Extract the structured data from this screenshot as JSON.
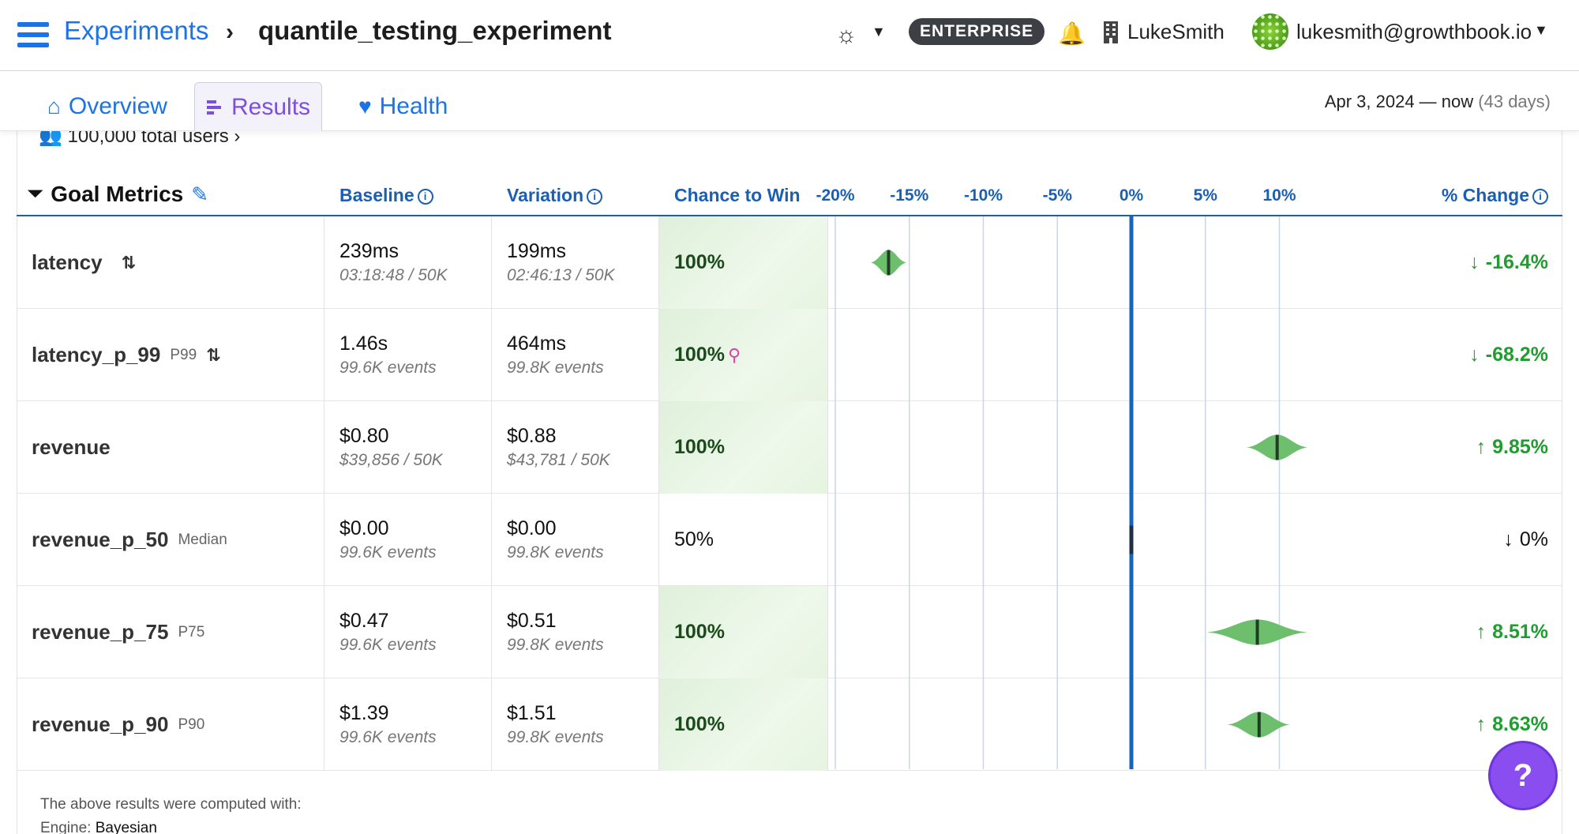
{
  "nav": {
    "breadcrumb_root": "Experiments",
    "breadcrumb_sep": "›",
    "breadcrumb_current": "quantile_testing_experiment",
    "plan_badge": "ENTERPRISE",
    "org_name": "LukeSmith",
    "user_email": "lukesmith@growthbook.io"
  },
  "tabs": [
    {
      "label": "Overview",
      "icon": "home-icon",
      "active": false
    },
    {
      "label": "Results",
      "icon": "results-icon",
      "active": true
    },
    {
      "label": "Health",
      "icon": "heart-pulse-icon",
      "active": false
    }
  ],
  "date_range": {
    "text": "Apr 3, 2024 — now",
    "duration": "(43 days)"
  },
  "summary": {
    "total_users": "100,000 total users"
  },
  "table": {
    "title": "Goal Metrics",
    "columns": {
      "baseline": "Baseline",
      "variation": "Variation",
      "chance_to_win": "Chance to Win",
      "pct_change": "% Change"
    },
    "axis_ticks": [
      "-20%",
      "-15%",
      "-10%",
      "-5%",
      "0%",
      "5%",
      "10%"
    ],
    "rows": [
      {
        "metric": "latency",
        "tag": "",
        "inverse_icon": true,
        "baseline": "239ms",
        "baseline_sub": "03:18:48 / 50K",
        "variation": "199ms",
        "variation_sub": "02:46:13 / 50K",
        "chance": "100%",
        "win": true,
        "flag": false,
        "change": "-16.4%",
        "direction": "down",
        "good": true
      },
      {
        "metric": "latency_p_99",
        "tag": "P99",
        "inverse_icon": true,
        "baseline": "1.46s",
        "baseline_sub": "99.6K events",
        "variation": "464ms",
        "variation_sub": "99.8K events",
        "chance": "100%",
        "win": true,
        "flag": true,
        "change": "-68.2%",
        "direction": "down",
        "good": true
      },
      {
        "metric": "revenue",
        "tag": "",
        "inverse_icon": false,
        "baseline": "$0.80",
        "baseline_sub": "$39,856 / 50K",
        "variation": "$0.88",
        "variation_sub": "$43,781 / 50K",
        "chance": "100%",
        "win": true,
        "flag": false,
        "change": "9.85%",
        "direction": "up",
        "good": true
      },
      {
        "metric": "revenue_p_50",
        "tag": "Median",
        "inverse_icon": false,
        "baseline": "$0.00",
        "baseline_sub": "99.6K events",
        "variation": "$0.00",
        "variation_sub": "99.8K events",
        "chance": "50%",
        "win": false,
        "flag": false,
        "change": "0%",
        "direction": "down",
        "good": false
      },
      {
        "metric": "revenue_p_75",
        "tag": "P75",
        "inverse_icon": false,
        "baseline": "$0.47",
        "baseline_sub": "99.6K events",
        "variation": "$0.51",
        "variation_sub": "99.8K events",
        "chance": "100%",
        "win": true,
        "flag": false,
        "change": "8.51%",
        "direction": "up",
        "good": true
      },
      {
        "metric": "revenue_p_90",
        "tag": "P90",
        "inverse_icon": false,
        "baseline": "$1.39",
        "baseline_sub": "99.6K events",
        "variation": "$1.51",
        "variation_sub": "99.8K events",
        "chance": "100%",
        "win": true,
        "flag": false,
        "change": "8.63%",
        "direction": "up",
        "good": true
      }
    ]
  },
  "chart_data": {
    "type": "scatter",
    "x_ticks": [
      -20,
      -15,
      -10,
      -5,
      0,
      5,
      10
    ],
    "xlim": [
      -20,
      10
    ],
    "series": [
      {
        "values": [
          {
            "metric": "latency",
            "mean": -16.4,
            "ci": [
              -17.6,
              -15.2
            ]
          },
          {
            "metric": "latency_p_99",
            "mean": -68.2,
            "ci": null
          },
          {
            "metric": "revenue",
            "mean": 9.85,
            "ci": [
              7.8,
              11.9
            ]
          },
          {
            "metric": "revenue_p_50",
            "mean": 0,
            "ci": [
              0,
              0
            ]
          },
          {
            "metric": "revenue_p_75",
            "mean": 8.51,
            "ci": [
              5.1,
              11.9
            ]
          },
          {
            "metric": "revenue_p_90",
            "mean": 8.63,
            "ci": [
              6.5,
              10.7
            ]
          }
        ]
      }
    ]
  },
  "footer": {
    "computed_with": "The above results were computed with:",
    "engine_label": "Engine:",
    "engine_value": "Bayesian"
  },
  "help": {
    "label": "?"
  },
  "colors": {
    "accent": "#1a73e8",
    "win_green": "#1f9d2e",
    "violin": "#6dbf6d",
    "zero_line": "#1565c0"
  }
}
